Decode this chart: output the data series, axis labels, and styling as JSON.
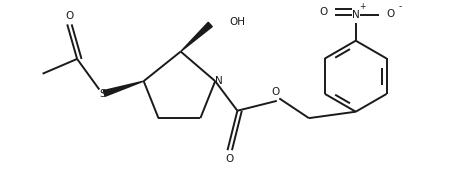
{
  "background_color": "#ffffff",
  "line_color": "#1a1a1a",
  "line_width": 1.4,
  "figsize": [
    4.58,
    1.78
  ],
  "dpi": 100,
  "xlim": [
    0,
    9.16
  ],
  "ylim": [
    0,
    3.56
  ]
}
